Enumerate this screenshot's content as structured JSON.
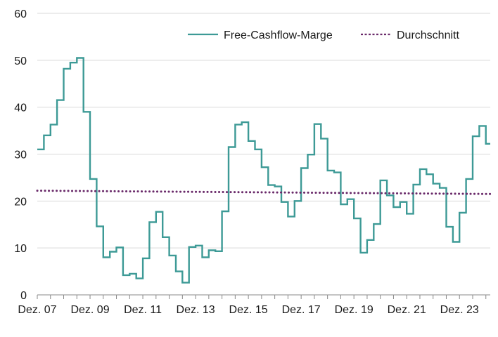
{
  "chart_data": {
    "type": "line",
    "title": "",
    "xlabel": "",
    "ylabel": "",
    "ylim": [
      0,
      60
    ],
    "y_ticks": [
      0,
      10,
      20,
      30,
      40,
      50,
      60
    ],
    "x_tick_labels": [
      "Dez. 07",
      "Dez. 09",
      "Dez. 11",
      "Dez. 13",
      "Dez. 15",
      "Dez. 17",
      "Dez. 19",
      "Dez. 21",
      "Dez. 23"
    ],
    "x_range_months": [
      0,
      206
    ],
    "grid": "horizontal",
    "legend_position": "top-right",
    "colors": {
      "fcf": "#3d9a96",
      "avg": "#6a2a6a",
      "grid": "#d9d9d9",
      "axis": "#888888"
    },
    "series": [
      {
        "name": "Free-Cashflow-Marge",
        "style": "step-line",
        "points": [
          [
            0,
            31
          ],
          [
            3,
            34
          ],
          [
            6,
            36.3
          ],
          [
            9,
            41.5
          ],
          [
            12,
            48.2
          ],
          [
            15,
            49.5
          ],
          [
            18,
            50.5
          ],
          [
            21,
            39
          ],
          [
            24,
            24.7
          ],
          [
            27,
            14.6
          ],
          [
            30,
            8
          ],
          [
            33,
            9.2
          ],
          [
            36,
            10.1
          ],
          [
            39,
            4.2
          ],
          [
            42,
            4.5
          ],
          [
            45,
            3.5
          ],
          [
            48,
            7.8
          ],
          [
            51,
            15.5
          ],
          [
            54,
            17.7
          ],
          [
            57,
            12.3
          ],
          [
            60,
            8.4
          ],
          [
            63,
            5
          ],
          [
            66,
            2.6
          ],
          [
            69,
            10.2
          ],
          [
            72,
            10.5
          ],
          [
            75,
            8
          ],
          [
            78,
            9.5
          ],
          [
            81,
            9.3
          ],
          [
            84,
            17.8
          ],
          [
            87,
            31.5
          ],
          [
            90,
            36.3
          ],
          [
            93,
            36.8
          ],
          [
            96,
            32.8
          ],
          [
            99,
            31
          ],
          [
            102,
            27.2
          ],
          [
            105,
            23.4
          ],
          [
            108,
            23.1
          ],
          [
            111,
            19.8
          ],
          [
            114,
            16.7
          ],
          [
            117,
            20
          ],
          [
            120,
            27
          ],
          [
            123,
            29.9
          ],
          [
            126,
            36.4
          ],
          [
            129,
            33.3
          ],
          [
            132,
            26.5
          ],
          [
            135,
            26.1
          ],
          [
            138,
            19.3
          ],
          [
            141,
            20.4
          ],
          [
            144,
            16.3
          ],
          [
            147,
            9
          ],
          [
            150,
            11.7
          ],
          [
            153,
            15.1
          ],
          [
            156,
            24.4
          ],
          [
            159,
            21.2
          ],
          [
            162,
            18.7
          ],
          [
            165,
            19.8
          ],
          [
            168,
            17.3
          ],
          [
            171,
            23.5
          ],
          [
            174,
            26.8
          ],
          [
            177,
            25.7
          ],
          [
            180,
            23.7
          ],
          [
            183,
            22.8
          ],
          [
            186,
            14.5
          ],
          [
            189,
            11.3
          ],
          [
            192,
            17.5
          ],
          [
            195,
            24.7
          ],
          [
            198,
            33.8
          ],
          [
            201,
            36
          ],
          [
            204,
            32.2
          ],
          [
            206,
            32.2
          ]
        ]
      },
      {
        "name": "Durchschnitt",
        "style": "dotted",
        "points": [
          [
            0,
            22.2
          ],
          [
            206,
            21.5
          ]
        ]
      }
    ]
  }
}
